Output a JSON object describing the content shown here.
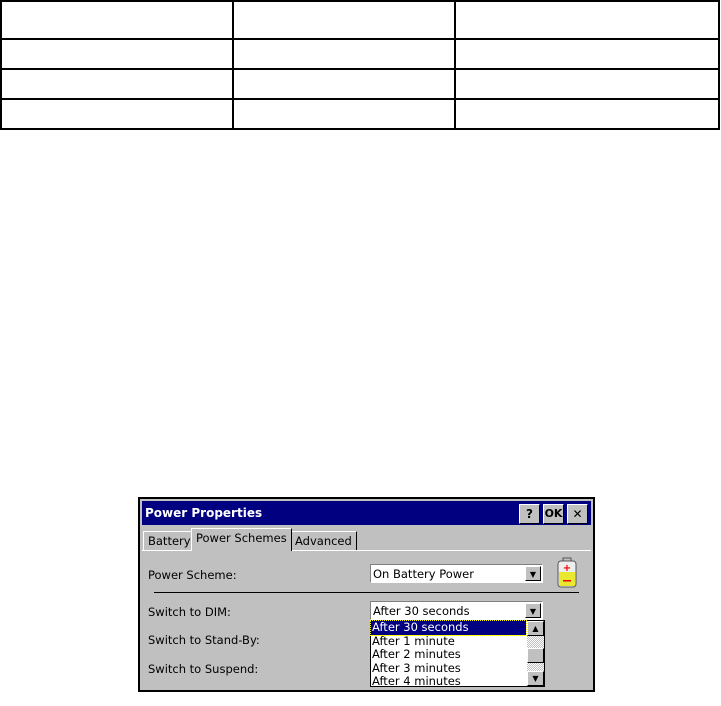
{
  "table": {
    "rows": [
      [
        "",
        "",
        ""
      ],
      [
        "",
        "",
        ""
      ],
      [
        "",
        "",
        ""
      ],
      [
        "",
        "",
        ""
      ]
    ]
  },
  "dialog": {
    "title": "Power Properties",
    "buttons": {
      "help": "?",
      "ok": "OK",
      "close": "✕"
    },
    "tabs": [
      {
        "label": "Battery"
      },
      {
        "label": "Power Schemes",
        "active": true
      },
      {
        "label": "Advanced"
      }
    ],
    "power_scheme_label": "Power Scheme:",
    "power_scheme_value": "On Battery Power",
    "dim_label": "Switch to DIM:",
    "dim_value": "After 30 seconds",
    "standby_label": "Switch to Stand-By:",
    "suspend_label": "Switch to Suspend:",
    "dropdown_options": [
      "After 30 seconds",
      "After 1 minute",
      "After 2 minutes",
      "After 3 minutes",
      "After 4 minutes"
    ],
    "selected_option": "After 30 seconds",
    "battery_icon": "battery-icon",
    "title_color": "#000080"
  }
}
